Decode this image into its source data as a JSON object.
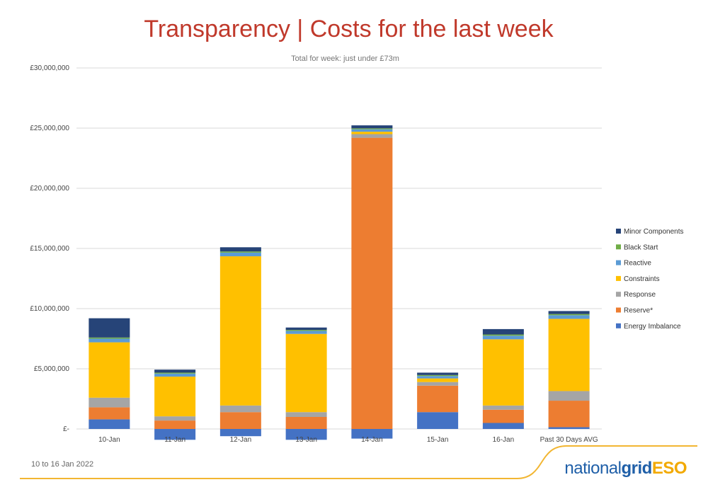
{
  "slide": {
    "title": "Transparency | Costs for the last week",
    "subtitle": "Total for week: just under £73m",
    "date_range": "10 to 16 Jan 2022",
    "logo": {
      "part1": "national",
      "part2": "grid",
      "part3": "ESO"
    }
  },
  "colors": {
    "title": "#c0392b",
    "accent_line": "#f2b632",
    "logo_blue": "#1f5fa8",
    "logo_orange": "#f2a900"
  },
  "chart_data": {
    "type": "bar",
    "stacked": true,
    "categories": [
      "10-Jan",
      "11-Jan",
      "12-Jan",
      "13-Jan",
      "14-Jan",
      "15-Jan",
      "16-Jan",
      "Past 30 Days AVG"
    ],
    "y_ticks": [
      {
        "value": 0,
        "label": "£-"
      },
      {
        "value": 5000000,
        "label": "£5,000,000"
      },
      {
        "value": 10000000,
        "label": "£10,000,000"
      },
      {
        "value": 15000000,
        "label": "£15,000,000"
      },
      {
        "value": 20000000,
        "label": "£20,000,000"
      },
      {
        "value": 25000000,
        "label": "£25,000,000"
      },
      {
        "value": 30000000,
        "label": "£30,000,000"
      }
    ],
    "ylim": [
      -1000000,
      30000000
    ],
    "grid": true,
    "legend_position": "right",
    "series": [
      {
        "name": "Energy Imbalance",
        "color": "#4472c4",
        "values": [
          800000,
          -900000,
          -600000,
          -900000,
          -800000,
          1400000,
          500000,
          150000
        ]
      },
      {
        "name": "Reserve*",
        "color": "#ed7d31",
        "values": [
          1000000,
          700000,
          1400000,
          1000000,
          24200000,
          2200000,
          1100000,
          2200000
        ]
      },
      {
        "name": "Response",
        "color": "#a5a5a5",
        "values": [
          800000,
          350000,
          550000,
          400000,
          300000,
          300000,
          350000,
          800000
        ]
      },
      {
        "name": "Constraints",
        "color": "#ffc000",
        "values": [
          4600000,
          3300000,
          12400000,
          6500000,
          200000,
          300000,
          5500000,
          6000000
        ]
      },
      {
        "name": "Reactive",
        "color": "#5b9bd5",
        "values": [
          300000,
          250000,
          300000,
          250000,
          200000,
          200000,
          300000,
          300000
        ]
      },
      {
        "name": "Black Start",
        "color": "#70ad47",
        "values": [
          100000,
          80000,
          100000,
          80000,
          80000,
          80000,
          100000,
          100000
        ]
      },
      {
        "name": "Minor Components",
        "color": "#264478",
        "values": [
          1600000,
          250000,
          350000,
          200000,
          250000,
          200000,
          450000,
          250000
        ]
      }
    ]
  }
}
